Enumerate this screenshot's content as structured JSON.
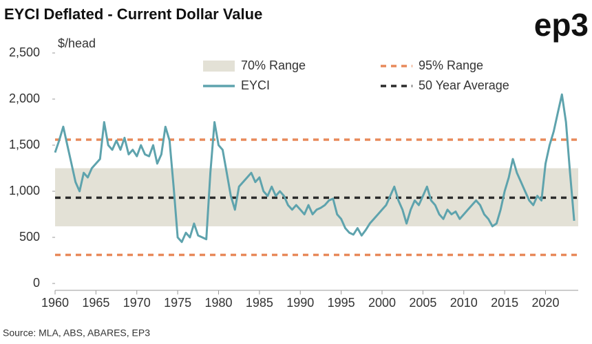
{
  "chart_data": {
    "type": "line",
    "title": "EYCI Deflated - Current Dollar Value",
    "logo": "ep3",
    "y_label": "$/head",
    "source": "Source: MLA, ABS, ABARES, EP3",
    "x": [
      1960,
      1960.5,
      1961,
      1961.5,
      1962,
      1962.5,
      1963,
      1963.5,
      1964,
      1964.5,
      1965,
      1965.5,
      1966,
      1966.5,
      1967,
      1967.5,
      1968,
      1968.5,
      1969,
      1969.5,
      1970,
      1970.5,
      1971,
      1971.5,
      1972,
      1972.5,
      1973,
      1973.5,
      1974,
      1974.5,
      1975,
      1975.5,
      1976,
      1976.5,
      1977,
      1977.5,
      1978,
      1978.5,
      1979,
      1979.5,
      1980,
      1980.5,
      1981,
      1981.5,
      1982,
      1982.5,
      1983,
      1983.5,
      1984,
      1984.5,
      1985,
      1985.5,
      1986,
      1986.5,
      1987,
      1987.5,
      1988,
      1988.5,
      1989,
      1989.5,
      1990,
      1990.5,
      1991,
      1991.5,
      1992,
      1992.5,
      1993,
      1993.5,
      1994,
      1994.5,
      1995,
      1995.5,
      1996,
      1996.5,
      1997,
      1997.5,
      1998,
      1998.5,
      1999,
      1999.5,
      2000,
      2000.5,
      2001,
      2001.5,
      2002,
      2002.5,
      2003,
      2003.5,
      2004,
      2004.5,
      2005,
      2005.5,
      2006,
      2006.5,
      2007,
      2007.5,
      2008,
      2008.5,
      2009,
      2009.5,
      2010,
      2010.5,
      2011,
      2011.5,
      2012,
      2012.5,
      2013,
      2013.5,
      2014,
      2014.5,
      2015,
      2015.5,
      2016,
      2016.5,
      2017,
      2017.5,
      2018,
      2018.5,
      2019,
      2019.5,
      2020,
      2020.5,
      2021,
      2021.5,
      2022,
      2022.5,
      2023,
      2023.5
    ],
    "series": [
      {
        "name": "EYCI",
        "color": "#5ea3ad",
        "values": [
          1420,
          1550,
          1700,
          1500,
          1300,
          1100,
          1000,
          1200,
          1150,
          1250,
          1300,
          1350,
          1750,
          1500,
          1450,
          1550,
          1450,
          1580,
          1400,
          1450,
          1380,
          1500,
          1400,
          1380,
          1500,
          1300,
          1400,
          1700,
          1550,
          1050,
          500,
          450,
          550,
          500,
          650,
          520,
          500,
          480,
          1200,
          1750,
          1500,
          1450,
          1200,
          950,
          800,
          1050,
          1100,
          1150,
          1200,
          1100,
          1150,
          1000,
          950,
          1050,
          950,
          1000,
          950,
          850,
          800,
          850,
          800,
          750,
          850,
          750,
          800,
          820,
          850,
          900,
          920,
          750,
          700,
          600,
          550,
          530,
          600,
          520,
          580,
          650,
          700,
          750,
          800,
          850,
          950,
          1050,
          900,
          800,
          650,
          800,
          900,
          850,
          950,
          1050,
          900,
          850,
          750,
          700,
          800,
          750,
          780,
          700,
          750,
          800,
          850,
          900,
          850,
          750,
          700,
          620,
          650,
          800,
          1000,
          1150,
          1350,
          1200,
          1100,
          1000,
          900,
          850,
          950,
          900,
          1300,
          1500,
          1650,
          1850,
          2050,
          1750,
          1200,
          680
        ]
      }
    ],
    "bands": [
      {
        "name": "70% Range",
        "from": 620,
        "to": 1250,
        "color": "#e3e1d6"
      }
    ],
    "lines": [
      {
        "name": "95% Range",
        "values": [
          1560,
          310
        ],
        "color": "#e8895a"
      },
      {
        "name": "50 Year Average",
        "values": [
          930
        ],
        "color": "#2b2b2b"
      }
    ],
    "xlim": [
      1960,
      2024
    ],
    "xticks": [
      1960,
      1965,
      1970,
      1975,
      1980,
      1985,
      1990,
      1995,
      2000,
      2005,
      2010,
      2015,
      2020
    ],
    "ylim": [
      0,
      2500
    ],
    "yticks": [
      0,
      500,
      {
        "value": 1000,
        "label": "1,000"
      },
      {
        "value": 1500,
        "label": "1,500"
      },
      {
        "value": 2000,
        "label": "2,000"
      },
      {
        "value": 2500,
        "label": "2,500"
      }
    ]
  }
}
